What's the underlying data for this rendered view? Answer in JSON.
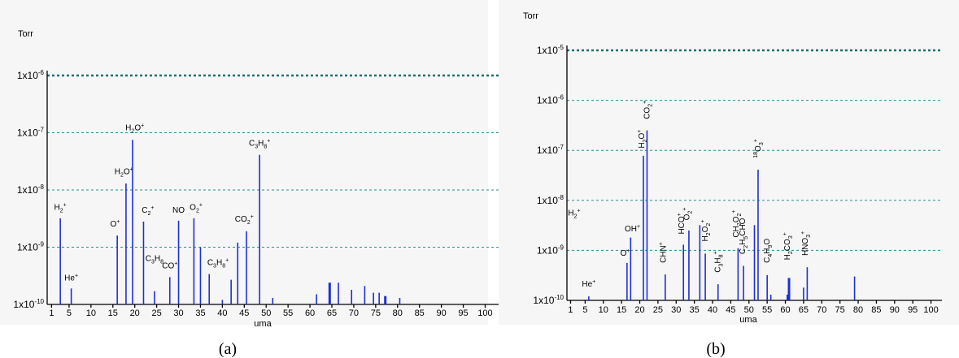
{
  "chart_data": [
    {
      "panel": "(a)",
      "type": "bar",
      "yscale": "log",
      "unit": "Torr",
      "xlabel": "uma",
      "xlim": [
        0,
        104
      ],
      "xticks": [
        1,
        5,
        10,
        15,
        20,
        25,
        30,
        35,
        40,
        45,
        50,
        55,
        60,
        65,
        70,
        75,
        80,
        85,
        90,
        95,
        100
      ],
      "ylim": [
        1e-10,
        1e-06
      ],
      "ytick_labels": [
        "1x10-10",
        "1x10-9",
        "1x10-8",
        "1x10-7",
        "1x10-6"
      ],
      "bars": [
        {
          "x": 3,
          "y": 3.2e-09
        },
        {
          "x": 5.5,
          "y": 1.9e-10
        },
        {
          "x": 16,
          "y": 1.6e-09
        },
        {
          "x": 18,
          "y": 1.3e-08
        },
        {
          "x": 19.5,
          "y": 7.5e-08
        },
        {
          "x": 22,
          "y": 2.8e-09
        },
        {
          "x": 24.5,
          "y": 1.7e-10
        },
        {
          "x": 28,
          "y": 3e-10
        },
        {
          "x": 30,
          "y": 2.9e-09
        },
        {
          "x": 33.5,
          "y": 3.2e-09
        },
        {
          "x": 35,
          "y": 1e-09
        },
        {
          "x": 37,
          "y": 3.4e-10
        },
        {
          "x": 40,
          "y": 1.2e-10
        },
        {
          "x": 42,
          "y": 2.7e-10
        },
        {
          "x": 43.5,
          "y": 1.2e-09
        },
        {
          "x": 45.5,
          "y": 1.9e-09
        },
        {
          "x": 48.5,
          "y": 4.1e-08
        },
        {
          "x": 51.5,
          "y": 1.3e-10
        },
        {
          "x": 61.5,
          "y": 1.5e-10
        },
        {
          "x": 64.5,
          "y": 2.4e-10
        },
        {
          "x": 66.5,
          "y": 2.4e-10
        },
        {
          "x": 69.5,
          "y": 1.8e-10
        },
        {
          "x": 72.5,
          "y": 2.1e-10
        },
        {
          "x": 74.5,
          "y": 1.6e-10
        },
        {
          "x": 75.8,
          "y": 1.6e-10
        },
        {
          "x": 77.2,
          "y": 1.4e-10
        },
        {
          "x": 80.5,
          "y": 1.3e-10
        }
      ],
      "annotations": [
        {
          "text": "H2+",
          "x": 3,
          "y": 4.5e-09
        },
        {
          "text": "He+",
          "x": 5.5,
          "y": 2.6e-10
        },
        {
          "text": "O+",
          "x": 15.5,
          "y": 2.3e-09
        },
        {
          "text": "H2O+",
          "x": 17.5,
          "y": 1.9e-08
        },
        {
          "text": "H2O+",
          "x": 20,
          "y": 1.1e-07
        },
        {
          "text": "C2+",
          "x": 23,
          "y": 4e-09
        },
        {
          "text": "C3H8",
          "x": 24.5,
          "y": 5.7e-10
        },
        {
          "text": "CO+",
          "x": 28,
          "y": 4.3e-10
        },
        {
          "text": "NO",
          "x": 30,
          "y": 4e-09
        },
        {
          "text": "O2+",
          "x": 34,
          "y": 4.5e-09
        },
        {
          "text": "C3H8+",
          "x": 39,
          "y": 4.9e-10
        },
        {
          "text": "CO2+",
          "x": 45,
          "y": 2.8e-09
        },
        {
          "text": "C3H8+",
          "x": 48.5,
          "y": 5.9e-08
        }
      ]
    },
    {
      "panel": "(b)",
      "type": "bar",
      "yscale": "log",
      "unit": "Torr",
      "xlabel": "uma",
      "xlim": [
        0,
        103
      ],
      "xticks": [
        1,
        5,
        10,
        15,
        20,
        25,
        30,
        35,
        40,
        45,
        50,
        55,
        60,
        65,
        70,
        75,
        80,
        85,
        90,
        95,
        100
      ],
      "ylim": [
        1e-10,
        1e-05
      ],
      "ytick_labels": [
        "1x10-10",
        "1x10-9",
        "1x10-8",
        "1x10-7",
        "1x10-6",
        "1x10-5"
      ],
      "bars": [
        {
          "x": 6,
          "y": 1.2e-10
        },
        {
          "x": 16.5,
          "y": 5.6e-10
        },
        {
          "x": 17.5,
          "y": 1.8e-09
        },
        {
          "x": 21,
          "y": 7.8e-08
        },
        {
          "x": 22,
          "y": 2.5e-07
        },
        {
          "x": 27,
          "y": 3.3e-10
        },
        {
          "x": 32,
          "y": 1.3e-09
        },
        {
          "x": 33.5,
          "y": 2.5e-09
        },
        {
          "x": 36.5,
          "y": 3.2e-09
        },
        {
          "x": 38,
          "y": 8.6e-10
        },
        {
          "x": 41.5,
          "y": 2.1e-10
        },
        {
          "x": 47,
          "y": 1.1e-09
        },
        {
          "x": 48.5,
          "y": 4.9e-10
        },
        {
          "x": 51.5,
          "y": 3.2e-09
        },
        {
          "x": 52.5,
          "y": 4.1e-08
        },
        {
          "x": 55,
          "y": 3.2e-10
        },
        {
          "x": 56,
          "y": 1.3e-10
        },
        {
          "x": 60.5,
          "y": 1.3e-10
        },
        {
          "x": 61,
          "y": 2.8e-10
        },
        {
          "x": 65,
          "y": 1.8e-10
        },
        {
          "x": 66,
          "y": 4.6e-10
        },
        {
          "x": 79,
          "y": 3e-10
        }
      ],
      "annotations": [
        {
          "text": "H2+",
          "x": 2,
          "y": 5e-09,
          "color": "#333333"
        },
        {
          "text": "He+",
          "x": 6,
          "y": 1.9e-10
        },
        {
          "text": "O+",
          "x": 16,
          "y": 7.8e-10
        },
        {
          "text": "OH+",
          "x": 18,
          "y": 2.4e-09
        },
        {
          "text": "H2O+",
          "x": 20.5,
          "y": 1.1e-07,
          "rotate": true
        },
        {
          "text": "CO2+",
          "x": 22,
          "y": 4.2e-07,
          "rotate": true
        },
        {
          "text": "CHN+",
          "x": 26.5,
          "y": 5.6e-10,
          "rotate": true
        },
        {
          "text": "HCO+",
          "x": 31.5,
          "y": 2.1e-09,
          "rotate": true
        },
        {
          "text": "O2+",
          "x": 33,
          "y": 4e-09,
          "rotate": true
        },
        {
          "text": "H2O2+",
          "x": 38,
          "y": 1.5e-09,
          "rotate": true,
          "color": "#666666"
        },
        {
          "text": "C3H8+",
          "x": 41.5,
          "y": 3.6e-10,
          "rotate": true
        },
        {
          "text": "CH2O2+",
          "x": 46.5,
          "y": 1.8e-09,
          "rotate": true
        },
        {
          "text": "C2H5CHO",
          "x": 48.3,
          "y": 8.4e-10,
          "rotate": true
        },
        {
          "text": "18O3+",
          "x": 52.5,
          "y": 7e-08,
          "rotate": true
        },
        {
          "text": "C4H9O",
          "x": 55,
          "y": 5.6e-10,
          "rotate": true
        },
        {
          "text": "H2CO3+",
          "x": 60.5,
          "y": 6.4e-10,
          "rotate": true
        },
        {
          "text": "HNO3+",
          "x": 65.5,
          "y": 7.8e-10,
          "rotate": true
        }
      ]
    }
  ],
  "captions": [
    "(a)",
    "(b)"
  ]
}
